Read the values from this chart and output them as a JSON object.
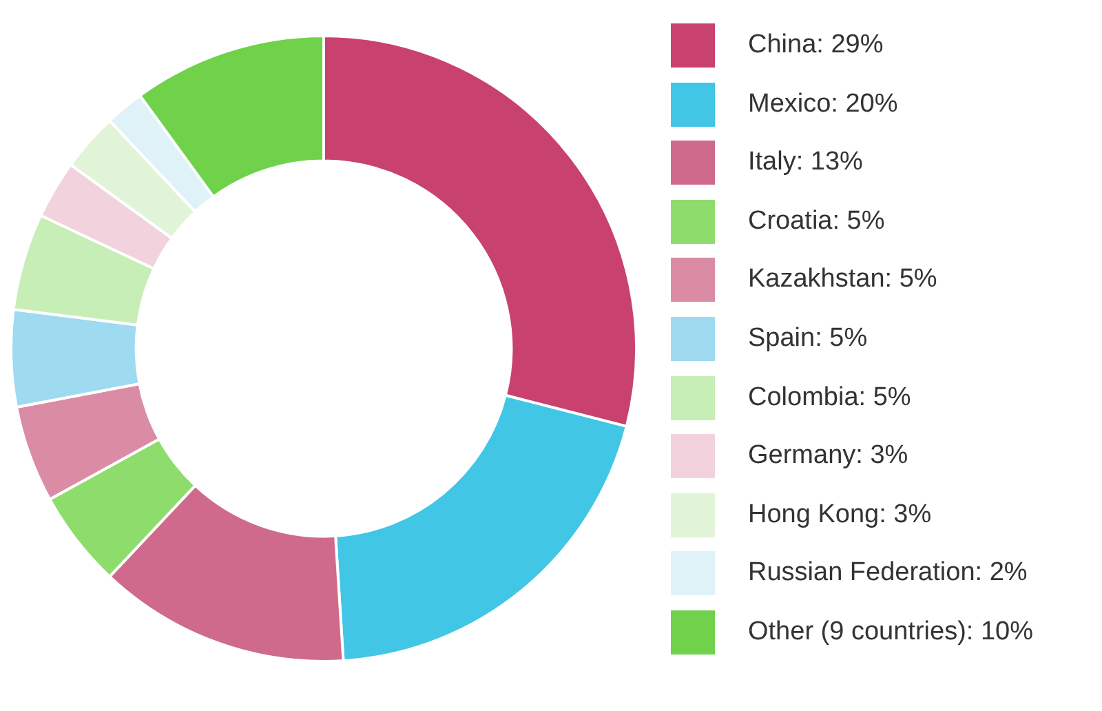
{
  "chart_data": {
    "type": "donut",
    "categories": [
      "China: 29%",
      "Mexico: 20%",
      "Italy: 13%",
      "Croatia: 5%",
      "Kazakhstan: 5%",
      "Spain: 5%",
      "Colombia: 5%",
      "Germany: 3%",
      "Hong Kong: 3%",
      "Russian Federation: 2%",
      "Other (9 countries): 10%"
    ],
    "values": [
      29,
      20,
      13,
      5,
      5,
      5,
      5,
      3,
      3,
      2,
      10
    ],
    "colors": [
      "#c8416f",
      "#42c6e6",
      "#cf6a8c",
      "#8edc6c",
      "#da8ca5",
      "#9edaf0",
      "#c6eeb6",
      "#f2d3dd",
      "#e2f4d8",
      "#dff2f8",
      "#6fd24a"
    ],
    "legend": "right"
  }
}
